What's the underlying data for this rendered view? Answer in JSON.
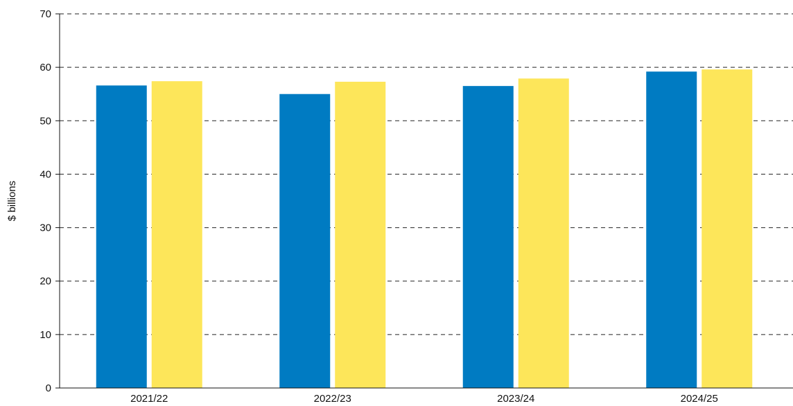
{
  "chart_data": {
    "type": "bar",
    "title": "",
    "xlabel": "",
    "ylabel": "$ billions",
    "categories": [
      "2021/22",
      "2022/23",
      "2023/24",
      "2024/25"
    ],
    "series": [
      {
        "color": "#007BC2",
        "values": [
          56.6,
          55.0,
          56.5,
          59.2
        ]
      },
      {
        "color": "#FDE65A",
        "values": [
          57.4,
          57.3,
          57.9,
          59.6
        ]
      }
    ],
    "ylim": [
      0,
      70
    ],
    "yticks": [
      0,
      10,
      20,
      30,
      40,
      50,
      60,
      70
    ],
    "grid": true,
    "grid_style": "dashed",
    "legend": "none"
  }
}
